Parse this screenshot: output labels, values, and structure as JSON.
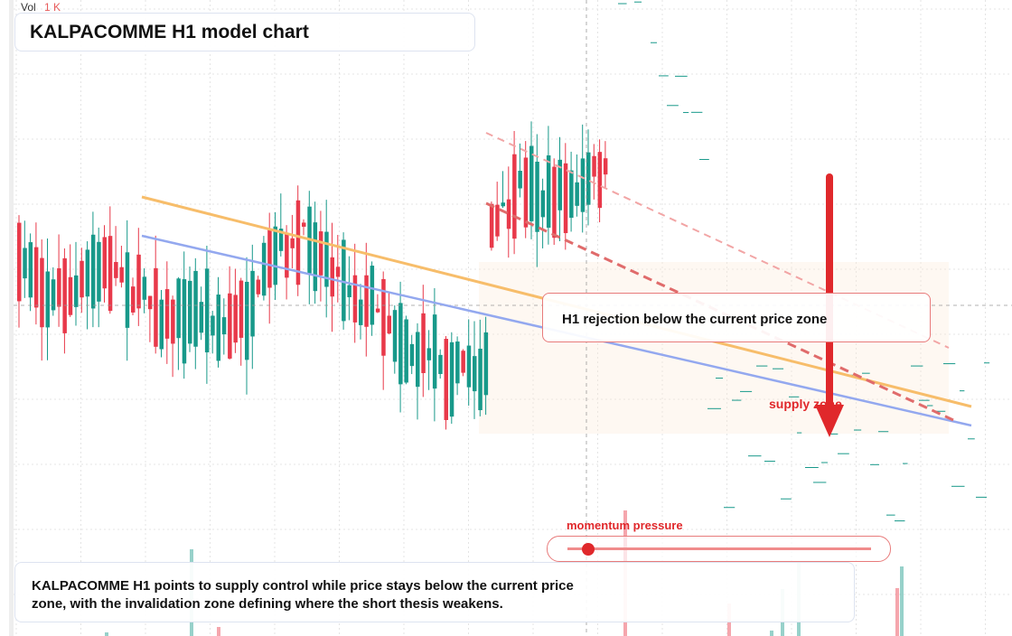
{
  "vol_label": "Vol",
  "vol_value": "1 K",
  "title": "KALPACOMME H1 model chart",
  "annotation": "H1 rejection below the current price zone",
  "zone_label": "supply zone",
  "momentum_label": "momentum pressure",
  "summary": "KALPACOMME H1 points to supply control while price stays below the current price zone, with the invalidation zone defining where the short thesis weakens."
}
